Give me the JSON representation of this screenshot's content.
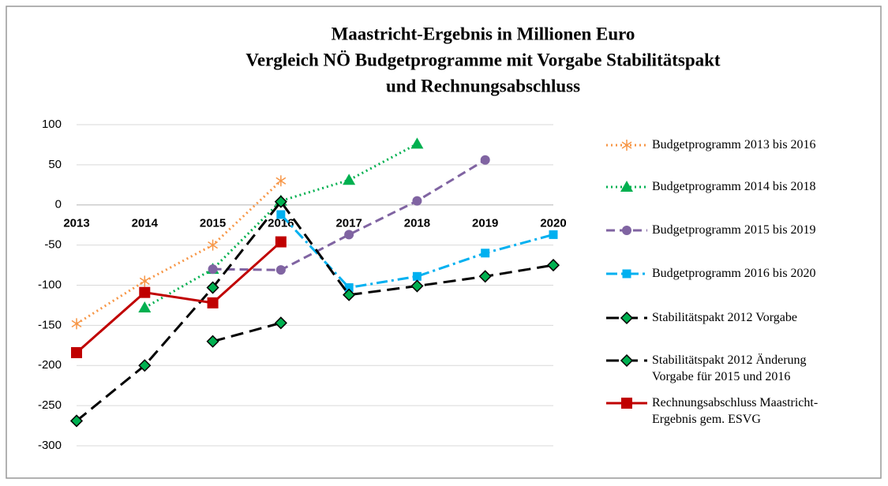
{
  "chart_data": {
    "type": "line",
    "title": [
      "Maastricht-Ergebnis in Millionen Euro",
      "Vergleich NÖ Budgetprogramme mit Vorgabe Stabilitätspakt",
      "und Rechnungsabschluss"
    ],
    "categories": [
      "2013",
      "2014",
      "2015",
      "2016",
      "2017",
      "2018",
      "2019",
      "2020"
    ],
    "ylim": [
      -300,
      100
    ],
    "yticks": [
      -300,
      -250,
      -200,
      -150,
      -100,
      -50,
      0,
      50,
      100
    ],
    "grid": true,
    "series": [
      {
        "name": "Budgetprogramm 2013 bis 2016",
        "color": "#f79646",
        "dash": "dotted",
        "marker": "asterisk",
        "values": [
          -148,
          -95,
          -50,
          30,
          null,
          null,
          null,
          null
        ]
      },
      {
        "name": "Budgetprogramm 2014 bis 2018",
        "color": "#00b050",
        "dash": "dotted",
        "marker": "triangle",
        "values": [
          null,
          -128,
          -80,
          5,
          31,
          76,
          null,
          null
        ]
      },
      {
        "name": "Budgetprogramm 2015 bis 2019",
        "color": "#8064a2",
        "dash": "dashed",
        "marker": "circle",
        "values": [
          null,
          null,
          -80,
          -81,
          -37,
          5,
          56,
          null
        ]
      },
      {
        "name": "Budgetprogramm 2016 bis 2020",
        "color": "#00b0f0",
        "dash": "dashdot",
        "marker": "square",
        "values": [
          null,
          null,
          null,
          -12,
          -103,
          -89,
          -60,
          -37
        ]
      },
      {
        "name": "Stabilitätspakt 2012 Vorgabe",
        "color": "#000000",
        "marker_color": "#00b050",
        "dash": "longdash",
        "marker": "diamond",
        "values": [
          -269,
          -200,
          -103,
          4,
          -112,
          -101,
          -89,
          -75
        ]
      },
      {
        "name": "Stabilitätspakt 2012 Änderung Vorgabe für 2015 und 2016",
        "color": "#000000",
        "marker_color": "#00b050",
        "dash": "longdash",
        "marker": "diamond",
        "values": [
          null,
          null,
          -170,
          -147,
          null,
          null,
          null,
          null
        ]
      },
      {
        "name": "Rechnungsabschluss Maastricht-Ergebnis gem. ESVG",
        "color": "#c00000",
        "dash": "solid",
        "marker": "square",
        "values": [
          -184,
          -109,
          -122,
          -46,
          null,
          null,
          null,
          null
        ]
      }
    ]
  }
}
